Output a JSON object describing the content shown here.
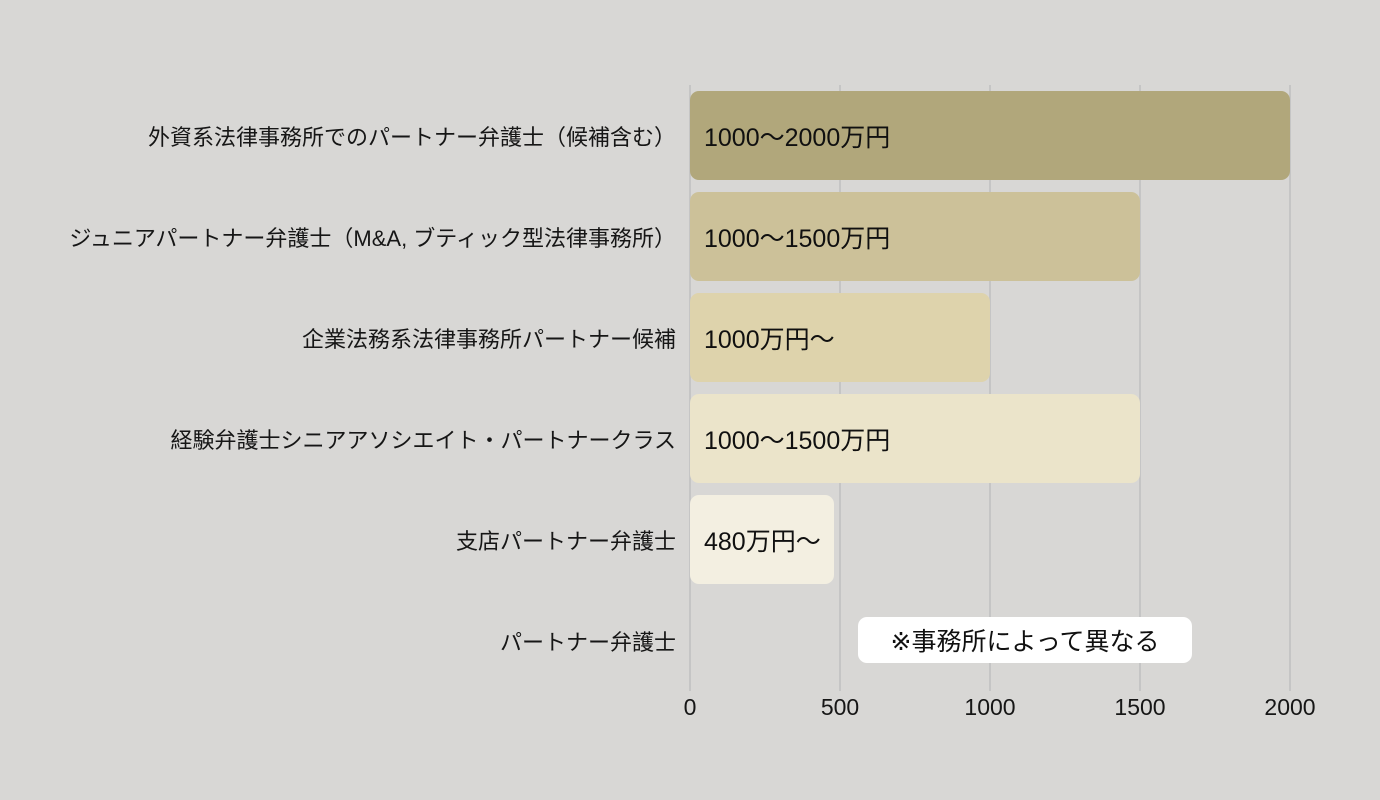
{
  "chart_data": {
    "type": "bar",
    "orientation": "horizontal",
    "title": "",
    "xlabel": "",
    "ylabel": "",
    "xlim": [
      0,
      2000
    ],
    "x_ticks": [
      0,
      500,
      1000,
      1500,
      2000
    ],
    "grid": true,
    "unit": "万円",
    "rows": [
      {
        "category": "外資系法律事務所でのパートナー弁護士（候補含む）",
        "value_label": "1000〜2000万円",
        "value_min": 1000,
        "value_max": 2000,
        "bar_length": 2000,
        "color": "#b1a77b"
      },
      {
        "category": "ジュニアパートナー弁護士（M&A, ブティック型法律事務所）",
        "value_label": "1000〜1500万円",
        "value_min": 1000,
        "value_max": 1500,
        "bar_length": 1500,
        "color": "#ccc199"
      },
      {
        "category": "企業法務系法律事務所パートナー候補",
        "value_label": "1000万円〜",
        "value_min": 1000,
        "bar_length": 1000,
        "color": "#ded3ac"
      },
      {
        "category": "経験弁護士シニアアソシエイト・パートナークラス",
        "value_label": "1000〜1500万円",
        "value_min": 1000,
        "value_max": 1500,
        "bar_length": 1500,
        "color": "#ebe4ca"
      },
      {
        "category": "支店パートナー弁護士",
        "value_label": "480万円〜",
        "value_min": 480,
        "bar_length": 480,
        "color": "#f3efe1"
      },
      {
        "category": "パートナー弁護士",
        "note": "※事務所によって異なる",
        "bar_length": 0
      }
    ],
    "colors": {
      "background": "#d8d7d5",
      "gridline": "#c5c5c5",
      "text": "#161616",
      "note_background": "#ffffff"
    }
  }
}
